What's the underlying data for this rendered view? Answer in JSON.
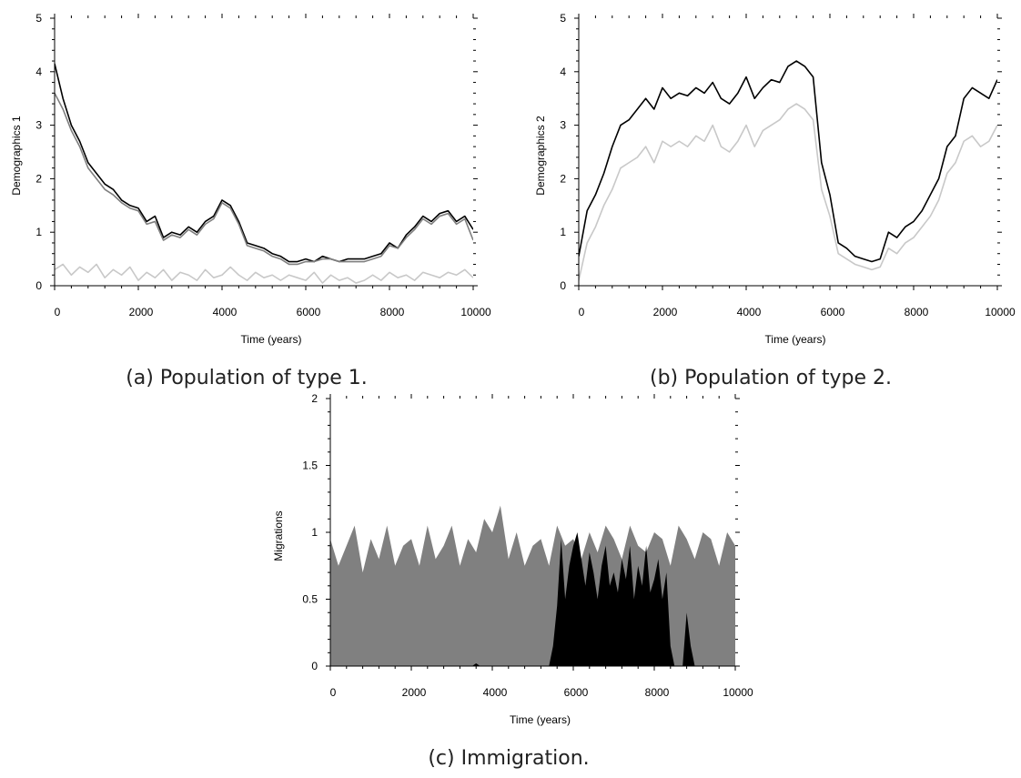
{
  "chart_data": [
    {
      "id": "a",
      "type": "line",
      "caption": "(a) Population of type 1.",
      "xlabel": "Time (years)",
      "ylabel": "Demographics 1",
      "xlim": [
        0,
        10000
      ],
      "ylim": [
        0,
        5
      ],
      "xticks": [
        0,
        2000,
        4000,
        6000,
        8000,
        10000
      ],
      "yticks": [
        0,
        1,
        2,
        3,
        4,
        5
      ],
      "grid": false,
      "series": [
        {
          "color": "#000000",
          "x": [
            0,
            200,
            400,
            600,
            800,
            1000,
            1200,
            1400,
            1600,
            1800,
            2000,
            2200,
            2400,
            2600,
            2800,
            3000,
            3200,
            3400,
            3600,
            3800,
            4000,
            4200,
            4400,
            4600,
            4800,
            5000,
            5200,
            5400,
            5600,
            5800,
            6000,
            6200,
            6400,
            6600,
            6800,
            7000,
            7200,
            7400,
            7600,
            7800,
            8000,
            8200,
            8400,
            8600,
            8800,
            9000,
            9200,
            9400,
            9600,
            9800,
            10000
          ],
          "y": [
            4.15,
            3.5,
            3.0,
            2.7,
            2.3,
            2.1,
            1.9,
            1.8,
            1.6,
            1.5,
            1.45,
            1.2,
            1.3,
            0.9,
            1.0,
            0.95,
            1.1,
            1.0,
            1.2,
            1.3,
            1.6,
            1.5,
            1.2,
            0.8,
            0.75,
            0.7,
            0.6,
            0.55,
            0.45,
            0.45,
            0.5,
            0.45,
            0.55,
            0.5,
            0.45,
            0.5,
            0.5,
            0.5,
            0.55,
            0.6,
            0.8,
            0.7,
            0.95,
            1.1,
            1.3,
            1.2,
            1.35,
            1.4,
            1.2,
            1.3,
            1.05
          ]
        },
        {
          "color": "#7f7f7f",
          "x": [
            0,
            200,
            400,
            600,
            800,
            1000,
            1200,
            1400,
            1600,
            1800,
            2000,
            2200,
            2400,
            2600,
            2800,
            3000,
            3200,
            3400,
            3600,
            3800,
            4000,
            4200,
            4400,
            4600,
            4800,
            5000,
            5200,
            5400,
            5600,
            5800,
            6000,
            6200,
            6400,
            6600,
            6800,
            7000,
            7200,
            7400,
            7600,
            7800,
            8000,
            8200,
            8400,
            8600,
            8800,
            9000,
            9200,
            9400,
            9600,
            9800,
            10000
          ],
          "y": [
            3.6,
            3.3,
            2.9,
            2.6,
            2.2,
            2.0,
            1.8,
            1.7,
            1.55,
            1.45,
            1.4,
            1.15,
            1.2,
            0.85,
            0.95,
            0.9,
            1.05,
            0.95,
            1.15,
            1.25,
            1.55,
            1.45,
            1.15,
            0.75,
            0.7,
            0.65,
            0.55,
            0.5,
            0.4,
            0.4,
            0.45,
            0.45,
            0.5,
            0.5,
            0.45,
            0.45,
            0.45,
            0.45,
            0.5,
            0.55,
            0.75,
            0.7,
            0.9,
            1.05,
            1.25,
            1.15,
            1.3,
            1.35,
            1.15,
            1.25,
            0.85
          ]
        },
        {
          "color": "#c8c8c8",
          "x": [
            0,
            200,
            400,
            600,
            800,
            1000,
            1200,
            1400,
            1600,
            1800,
            2000,
            2200,
            2400,
            2600,
            2800,
            3000,
            3200,
            3400,
            3600,
            3800,
            4000,
            4200,
            4400,
            4600,
            4800,
            5000,
            5200,
            5400,
            5600,
            5800,
            6000,
            6200,
            6400,
            6600,
            6800,
            7000,
            7200,
            7400,
            7600,
            7800,
            8000,
            8200,
            8400,
            8600,
            8800,
            9000,
            9200,
            9400,
            9600,
            9800,
            10000
          ],
          "y": [
            0.3,
            0.4,
            0.2,
            0.35,
            0.25,
            0.4,
            0.15,
            0.3,
            0.2,
            0.35,
            0.1,
            0.25,
            0.15,
            0.3,
            0.1,
            0.25,
            0.2,
            0.1,
            0.3,
            0.15,
            0.2,
            0.35,
            0.2,
            0.1,
            0.25,
            0.15,
            0.2,
            0.1,
            0.2,
            0.15,
            0.1,
            0.25,
            0.05,
            0.2,
            0.1,
            0.15,
            0.05,
            0.1,
            0.2,
            0.1,
            0.25,
            0.15,
            0.2,
            0.1,
            0.25,
            0.2,
            0.15,
            0.25,
            0.2,
            0.3,
            0.15
          ]
        }
      ]
    },
    {
      "id": "b",
      "type": "line",
      "caption": "(b) Population of type 2.",
      "xlabel": "Time (years)",
      "ylabel": "Demographics 2",
      "xlim": [
        0,
        10000
      ],
      "ylim": [
        0,
        5
      ],
      "xticks": [
        0,
        2000,
        4000,
        6000,
        8000,
        10000
      ],
      "yticks": [
        0,
        1,
        2,
        3,
        4,
        5
      ],
      "grid": false,
      "series": [
        {
          "color": "#000000",
          "x": [
            0,
            200,
            400,
            600,
            800,
            1000,
            1200,
            1400,
            1600,
            1800,
            2000,
            2200,
            2400,
            2600,
            2800,
            3000,
            3200,
            3400,
            3600,
            3800,
            4000,
            4200,
            4400,
            4600,
            4800,
            5000,
            5200,
            5400,
            5600,
            5800,
            6000,
            6200,
            6400,
            6600,
            6800,
            7000,
            7200,
            7400,
            7600,
            7800,
            8000,
            8200,
            8400,
            8600,
            8800,
            9000,
            9200,
            9400,
            9600,
            9800,
            10000
          ],
          "y": [
            0.55,
            1.4,
            1.7,
            2.1,
            2.6,
            3.0,
            3.1,
            3.3,
            3.5,
            3.3,
            3.7,
            3.5,
            3.6,
            3.55,
            3.7,
            3.6,
            3.8,
            3.5,
            3.4,
            3.6,
            3.9,
            3.5,
            3.7,
            3.85,
            3.8,
            4.1,
            4.2,
            4.1,
            3.9,
            2.3,
            1.7,
            0.8,
            0.7,
            0.55,
            0.5,
            0.45,
            0.5,
            1.0,
            0.9,
            1.1,
            1.2,
            1.4,
            1.7,
            2.0,
            2.6,
            2.8,
            3.5,
            3.7,
            3.6,
            3.5,
            3.85
          ]
        },
        {
          "color": "#c8c8c8",
          "x": [
            0,
            200,
            400,
            600,
            800,
            1000,
            1200,
            1400,
            1600,
            1800,
            2000,
            2200,
            2400,
            2600,
            2800,
            3000,
            3200,
            3400,
            3600,
            3800,
            4000,
            4200,
            4400,
            4600,
            4800,
            5000,
            5200,
            5400,
            5600,
            5800,
            6000,
            6200,
            6400,
            6600,
            6800,
            7000,
            7200,
            7400,
            7600,
            7800,
            8000,
            8200,
            8400,
            8600,
            8800,
            9000,
            9200,
            9400,
            9600,
            9800,
            10000
          ],
          "y": [
            0.1,
            0.8,
            1.1,
            1.5,
            1.8,
            2.2,
            2.3,
            2.4,
            2.6,
            2.3,
            2.7,
            2.6,
            2.7,
            2.6,
            2.8,
            2.7,
            3.0,
            2.6,
            2.5,
            2.7,
            3.0,
            2.6,
            2.9,
            3.0,
            3.1,
            3.3,
            3.4,
            3.3,
            3.1,
            1.8,
            1.3,
            0.6,
            0.5,
            0.4,
            0.35,
            0.3,
            0.35,
            0.7,
            0.6,
            0.8,
            0.9,
            1.1,
            1.3,
            1.6,
            2.1,
            2.3,
            2.7,
            2.8,
            2.6,
            2.7,
            3.0
          ]
        }
      ]
    },
    {
      "id": "c",
      "type": "area",
      "caption": "(c) Immigration.",
      "xlabel": "Time (years)",
      "ylabel": "Migrations",
      "xlim": [
        0,
        10000
      ],
      "ylim": [
        0,
        2
      ],
      "xticks": [
        0,
        2000,
        4000,
        6000,
        8000,
        10000
      ],
      "yticks": [
        0,
        0.5,
        1,
        1.5,
        2
      ],
      "grid": false,
      "series": [
        {
          "color": "#808080",
          "x": [
            0,
            200,
            400,
            600,
            800,
            1000,
            1200,
            1400,
            1600,
            1800,
            2000,
            2200,
            2400,
            2600,
            2800,
            3000,
            3200,
            3400,
            3600,
            3800,
            4000,
            4200,
            4400,
            4600,
            4800,
            5000,
            5200,
            5400,
            5600,
            5800,
            6000,
            6200,
            6400,
            6600,
            6800,
            7000,
            7200,
            7400,
            7600,
            7800,
            8000,
            8200,
            8400,
            8600,
            8800,
            9000,
            9200,
            9400,
            9600,
            9800,
            10000
          ],
          "y": [
            0.95,
            0.75,
            0.9,
            1.05,
            0.7,
            0.95,
            0.8,
            1.05,
            0.75,
            0.9,
            0.95,
            0.75,
            1.05,
            0.8,
            0.9,
            1.05,
            0.75,
            0.95,
            0.85,
            1.1,
            1.0,
            1.2,
            0.8,
            1.0,
            0.75,
            0.9,
            0.95,
            0.75,
            1.05,
            0.9,
            0.95,
            0.8,
            1.0,
            0.85,
            1.05,
            0.95,
            0.8,
            1.05,
            0.9,
            0.85,
            1.0,
            0.95,
            0.75,
            1.05,
            0.95,
            0.8,
            1.0,
            0.95,
            0.75,
            1.0,
            0.9
          ]
        },
        {
          "color": "#000000",
          "x": [
            0,
            3500,
            3600,
            3700,
            3800,
            5400,
            5500,
            5600,
            5700,
            5800,
            5900,
            6000,
            6100,
            6200,
            6300,
            6400,
            6500,
            6600,
            6700,
            6800,
            6900,
            7000,
            7100,
            7200,
            7300,
            7400,
            7500,
            7600,
            7700,
            7800,
            7900,
            8000,
            8100,
            8200,
            8300,
            8400,
            8500,
            8600,
            8700,
            8800,
            8900,
            9000,
            10000
          ],
          "y": [
            0,
            0,
            0.02,
            0,
            0,
            0,
            0.15,
            0.45,
            0.95,
            0.5,
            0.75,
            0.9,
            1.0,
            0.8,
            0.6,
            0.85,
            0.7,
            0.5,
            0.75,
            0.9,
            0.6,
            0.7,
            0.55,
            0.8,
            0.65,
            0.9,
            0.5,
            0.75,
            0.6,
            0.9,
            0.55,
            0.65,
            0.8,
            0.5,
            0.7,
            0.15,
            0,
            0,
            0,
            0.4,
            0.15,
            0,
            0
          ]
        }
      ]
    }
  ]
}
